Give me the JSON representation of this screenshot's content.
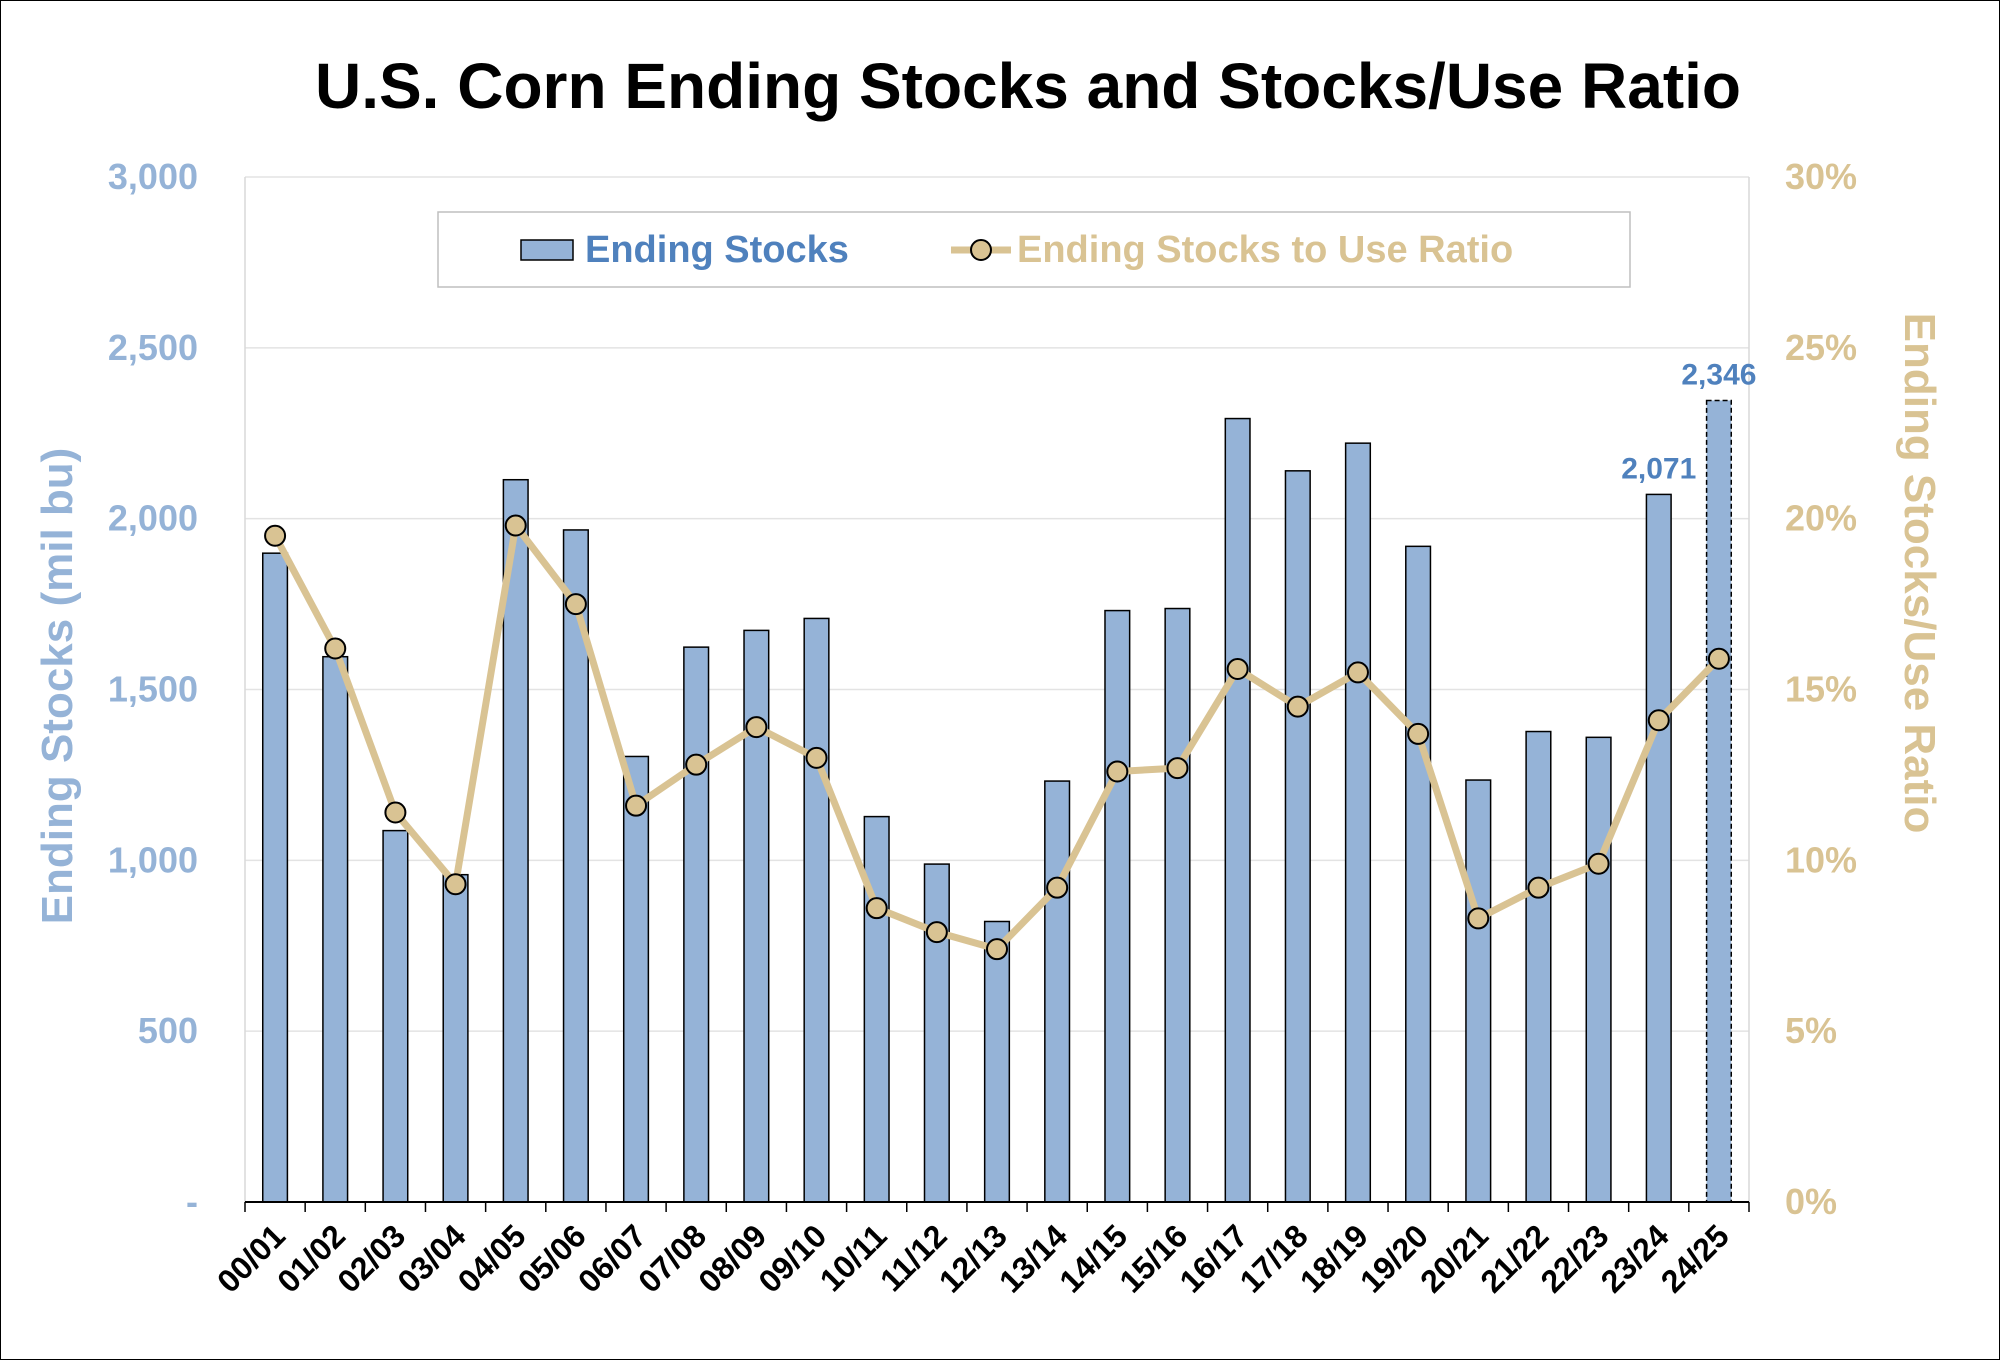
{
  "chart_data": {
    "type": "bar",
    "title": "U.S. Corn Ending Stocks and Stocks/Use Ratio",
    "categories": [
      "00/01",
      "01/02",
      "02/03",
      "03/04",
      "04/05",
      "05/06",
      "06/07",
      "07/08",
      "08/09",
      "09/10",
      "10/11",
      "11/12",
      "12/13",
      "13/14",
      "14/15",
      "15/16",
      "16/17",
      "17/18",
      "18/19",
      "19/20",
      "20/21",
      "21/22",
      "22/23",
      "23/24",
      "24/25"
    ],
    "series": [
      {
        "name": "Ending Stocks",
        "type": "bar",
        "axis": "left",
        "color": "#95b3d7",
        "values": [
          1899,
          1596,
          1087,
          958,
          2114,
          1967,
          1304,
          1624,
          1673,
          1708,
          1128,
          989,
          821,
          1232,
          1731,
          1737,
          2293,
          2140,
          2221,
          1919,
          1235,
          1377,
          1360,
          2071,
          2346
        ]
      },
      {
        "name": "Ending Stocks to Use Ratio",
        "type": "line",
        "axis": "right",
        "color": "#d9c393",
        "values": [
          19.5,
          16.2,
          11.4,
          9.3,
          19.8,
          17.5,
          11.6,
          12.8,
          13.9,
          13.0,
          8.6,
          7.9,
          7.4,
          9.2,
          12.6,
          12.7,
          15.6,
          14.5,
          15.5,
          13.7,
          8.3,
          9.2,
          9.9,
          14.1,
          15.9
        ]
      }
    ],
    "ylabel": "Ending Stocks (mil bu)",
    "ylabel_right": "Ending Stocks/Use Ratio",
    "ylim": [
      0,
      3000
    ],
    "ylim_right": [
      0,
      30
    ],
    "yticks": [
      "-",
      "500",
      "1,000",
      "1,500",
      "2,000",
      "2,500",
      "3,000"
    ],
    "yticks_right": [
      "0%",
      "5%",
      "10%",
      "15%",
      "20%",
      "25%",
      "30%"
    ],
    "data_labels": [
      {
        "category": "23/24",
        "text": "2,071"
      },
      {
        "category": "24/25",
        "text": "2,346"
      }
    ],
    "highlight_category": "24/25",
    "grid": true,
    "legend_position": "top"
  }
}
